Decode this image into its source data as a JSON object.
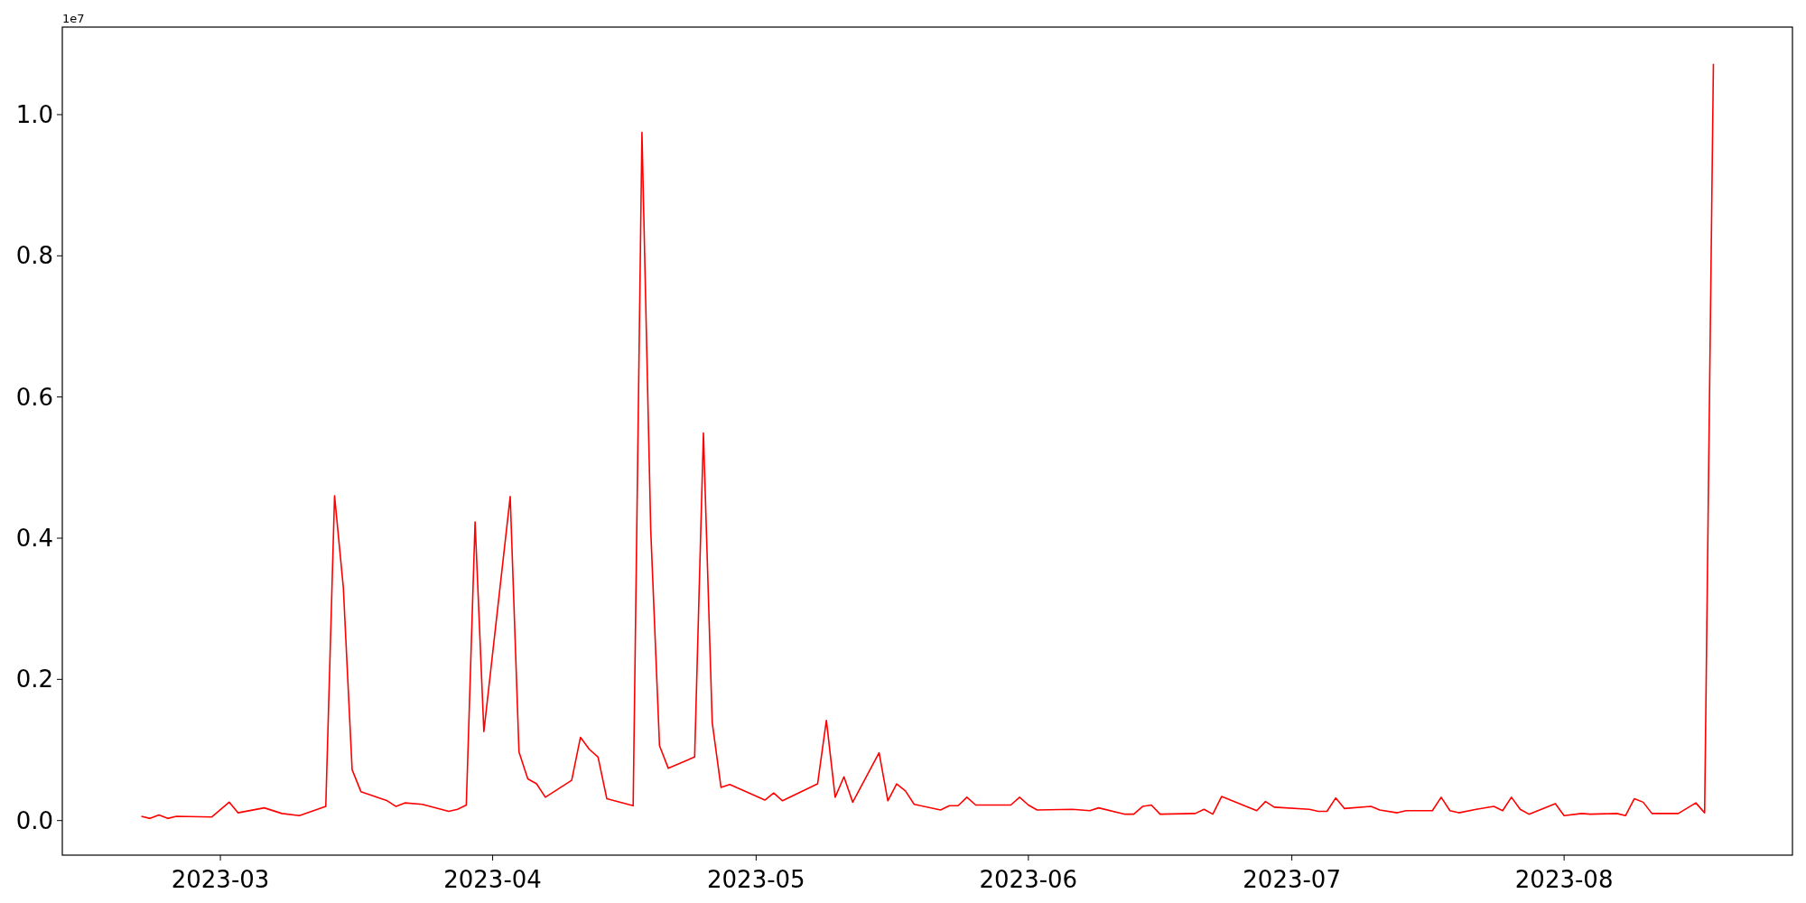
{
  "chart_data": {
    "type": "line",
    "annotations": [
      "1e7"
    ],
    "xlim": [
      "2023-02-11",
      "2023-08-27"
    ],
    "xticks": [
      "2023-03",
      "2023-04",
      "2023-05",
      "2023-06",
      "2023-07",
      "2023-08"
    ],
    "ylim": [
      -0.049,
      1.124
    ],
    "yticks": [
      {
        "value": 0,
        "label": "0.0"
      },
      0.2,
      0.4,
      0.6,
      0.8,
      {
        "value": 1,
        "label": "1.0"
      }
    ],
    "x": [
      "2023-02-20",
      "2023-02-21",
      "2023-02-22",
      "2023-02-23",
      "2023-02-24",
      "2023-02-28",
      "2023-03-02",
      "2023-03-03",
      "2023-03-06",
      "2023-03-08",
      "2023-03-10",
      "2023-03-13",
      "2023-03-14",
      "2023-03-15",
      "2023-03-16",
      "2023-03-17",
      "2023-03-20",
      "2023-03-21",
      "2023-03-22",
      "2023-03-24",
      "2023-03-27",
      "2023-03-28",
      "2023-03-29",
      "2023-03-30",
      "2023-03-31",
      "2023-04-03",
      "2023-04-04",
      "2023-04-05",
      "2023-04-06",
      "2023-04-07",
      "2023-04-10",
      "2023-04-11",
      "2023-04-12",
      "2023-04-13",
      "2023-04-14",
      "2023-04-17",
      "2023-04-18",
      "2023-04-19",
      "2023-04-20",
      "2023-04-21",
      "2023-04-24",
      "2023-04-25",
      "2023-04-26",
      "2023-04-27",
      "2023-04-28",
      "2023-05-02",
      "2023-05-03",
      "2023-05-04",
      "2023-05-08",
      "2023-05-09",
      "2023-05-10",
      "2023-05-11",
      "2023-05-12",
      "2023-05-15",
      "2023-05-16",
      "2023-05-17",
      "2023-05-18",
      "2023-05-19",
      "2023-05-22",
      "2023-05-23",
      "2023-05-24",
      "2023-05-25",
      "2023-05-26",
      "2023-05-30",
      "2023-05-31",
      "2023-06-01",
      "2023-06-02",
      "2023-06-06",
      "2023-06-08",
      "2023-06-09",
      "2023-06-12",
      "2023-06-13",
      "2023-06-14",
      "2023-06-15",
      "2023-06-16",
      "2023-06-20",
      "2023-06-21",
      "2023-06-22",
      "2023-06-23",
      "2023-06-27",
      "2023-06-28",
      "2023-06-29",
      "2023-07-03",
      "2023-07-04",
      "2023-07-05",
      "2023-07-06",
      "2023-07-07",
      "2023-07-10",
      "2023-07-11",
      "2023-07-13",
      "2023-07-14",
      "2023-07-17",
      "2023-07-18",
      "2023-07-19",
      "2023-07-20",
      "2023-07-22",
      "2023-07-24",
      "2023-07-25",
      "2023-07-26",
      "2023-07-27",
      "2023-07-28",
      "2023-07-31",
      "2023-08-01",
      "2023-08-03",
      "2023-08-04",
      "2023-08-07",
      "2023-08-08",
      "2023-08-09",
      "2023-08-10",
      "2023-08-11",
      "2023-08-14",
      "2023-08-16",
      "2023-08-17",
      "2023-08-18"
    ],
    "series": [
      {
        "color": "#ff0000",
        "values": [
          0.006,
          0.003,
          0.008,
          0.003,
          0.006,
          0.005,
          0.026,
          0.011,
          0.018,
          0.01,
          0.007,
          0.02,
          0.46,
          0.33,
          0.072,
          0.041,
          0.028,
          0.02,
          0.025,
          0.023,
          0.013,
          0.016,
          0.022,
          0.423,
          0.126,
          0.459,
          0.097,
          0.059,
          0.052,
          0.033,
          0.057,
          0.118,
          0.101,
          0.09,
          0.031,
          0.021,
          0.975,
          0.412,
          0.106,
          0.074,
          0.09,
          0.549,
          0.139,
          0.047,
          0.051,
          0.029,
          0.039,
          0.028,
          0.052,
          0.142,
          0.033,
          0.062,
          0.026,
          0.096,
          0.028,
          0.052,
          0.042,
          0.023,
          0.015,
          0.021,
          0.021,
          0.033,
          0.022,
          0.022,
          0.033,
          0.022,
          0.015,
          0.016,
          0.014,
          0.018,
          0.009,
          0.009,
          0.02,
          0.022,
          0.009,
          0.01,
          0.016,
          0.009,
          0.034,
          0.014,
          0.027,
          0.019,
          0.016,
          0.013,
          0.013,
          0.032,
          0.017,
          0.02,
          0.015,
          0.011,
          0.014,
          0.014,
          0.033,
          0.014,
          0.011,
          0.016,
          0.02,
          0.014,
          0.033,
          0.016,
          0.009,
          0.024,
          0.007,
          0.01,
          0.009,
          0.01,
          0.007,
          0.031,
          0.026,
          0.01,
          0.01,
          0.025,
          0.011,
          1.072
        ]
      }
    ]
  }
}
